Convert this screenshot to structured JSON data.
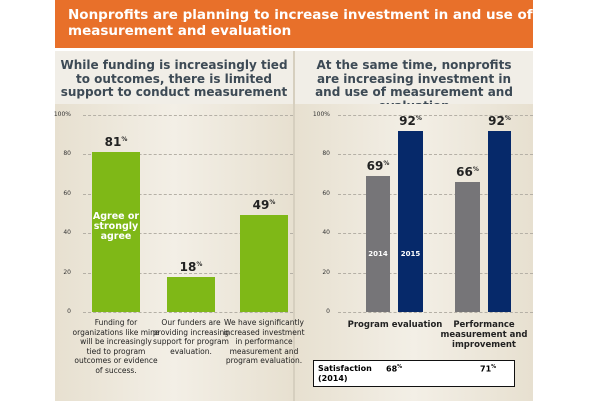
{
  "header": {
    "title": "Nonprofits are planning to increase investment in and use of measurement and evaluation"
  },
  "left_heading": "While funding is increasingly tied to outcomes, there is limited support to conduct measurement",
  "right_heading": "At the same time, nonprofits are increasing investment in and use of measurement and evaluation",
  "colors": {
    "orange": "#e8702a",
    "green": "#7fb817",
    "gray": "#767578",
    "navy": "#06296a"
  },
  "chart_data": [
    {
      "type": "bar",
      "ylim": [
        0,
        100
      ],
      "yticks": [
        "0",
        "20",
        "40",
        "60",
        "80",
        "100%"
      ],
      "categories": [
        "Funding for organizations like mine will be increasingly tied to program outcomes or evidence of success.",
        "Our funders are providing increasing support for program evaluation.",
        "We have significantly increased investment in performance measurement and program evaluation."
      ],
      "values": [
        81,
        18,
        49
      ],
      "labels": [
        "81",
        "18",
        "49"
      ],
      "unit": "%",
      "bar_annotation": "Agree or strongly agree"
    },
    {
      "type": "bar",
      "ylim": [
        0,
        100
      ],
      "yticks": [
        "0",
        "20",
        "40",
        "60",
        "80",
        "100%"
      ],
      "categories": [
        "Program evaluation",
        "Performance measurement and improvement"
      ],
      "series": [
        {
          "name": "2014",
          "values": [
            69,
            66
          ],
          "labels": [
            "69",
            "66"
          ]
        },
        {
          "name": "2015",
          "values": [
            92,
            92
          ],
          "labels": [
            "92",
            "92"
          ]
        }
      ],
      "unit": "%",
      "satisfaction": {
        "label": "Satisfaction (2014)",
        "values": [
          "68",
          "71"
        ]
      }
    }
  ]
}
